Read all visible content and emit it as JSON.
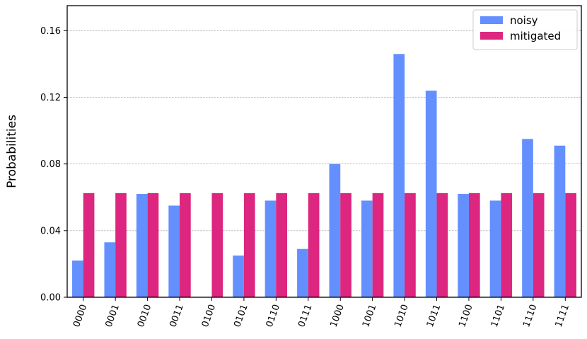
{
  "chart_data": {
    "type": "bar",
    "title": "",
    "xlabel": "",
    "ylabel": "Probabilities",
    "ylim": [
      0,
      0.175
    ],
    "yticks": [
      "0.00",
      "0.04",
      "0.08",
      "0.12",
      "0.16"
    ],
    "grid": "horizontal dashed",
    "legend_position": "top-right",
    "categories": [
      "0000",
      "0001",
      "0010",
      "0011",
      "0100",
      "0101",
      "0110",
      "0111",
      "1000",
      "1001",
      "1010",
      "1011",
      "1100",
      "1101",
      "1110",
      "1111"
    ],
    "series": [
      {
        "name": "noisy",
        "color": "#648fff",
        "values": [
          0.022,
          0.033,
          0.062,
          0.055,
          0.0,
          0.025,
          0.058,
          0.029,
          0.08,
          0.058,
          0.146,
          0.124,
          0.062,
          0.058,
          0.095,
          0.091
        ]
      },
      {
        "name": "mitigated",
        "color": "#dc267f",
        "values": [
          0.0625,
          0.0625,
          0.0625,
          0.0625,
          0.0625,
          0.0625,
          0.0625,
          0.0625,
          0.0625,
          0.0625,
          0.0625,
          0.0625,
          0.0625,
          0.0625,
          0.0625,
          0.0625
        ]
      }
    ]
  }
}
